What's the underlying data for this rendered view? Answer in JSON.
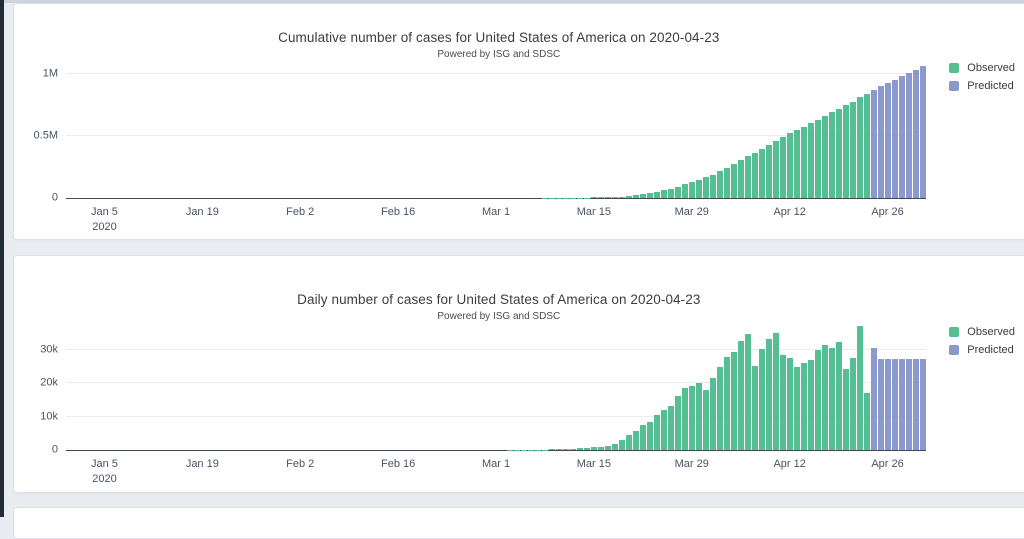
{
  "page": {
    "background": "#e9edf1",
    "left_strip_color": "#222a35",
    "top_strip_color": "#cbd3df"
  },
  "colors": {
    "observed": "#56be93",
    "predicted": "#8c99cd",
    "grid_line": "#ebebf0",
    "axis_line": "#424852",
    "tick_text": "#4a5365"
  },
  "legend": {
    "observed_label": "Observed",
    "predicted_label": "Predicted"
  },
  "chart_data": [
    {
      "type": "bar",
      "title": "Cumulative number of cases for United States of America on 2020-04-23",
      "subtitle": "Powered by ISG and SDSC",
      "unit": "thousands of cases",
      "x_start_date": "2019-12-31",
      "total_days": 123,
      "ylim_k": [
        0,
        1100
      ],
      "grid": true,
      "legend_position": "top-right",
      "y_ticks": [
        {
          "label": "1M",
          "value_k": 1000
        },
        {
          "label": "0.5M",
          "value_k": 500
        },
        {
          "label": "0",
          "value_k": 0
        }
      ],
      "x_ticks": [
        {
          "label": "Jan 5",
          "sublabel": "2020",
          "day_index": 5
        },
        {
          "label": "Jan 19",
          "day_index": 19
        },
        {
          "label": "Feb 2",
          "day_index": 33
        },
        {
          "label": "Feb 16",
          "day_index": 47
        },
        {
          "label": "Mar 1",
          "day_index": 61
        },
        {
          "label": "Mar 15",
          "day_index": 75
        },
        {
          "label": "Mar 29",
          "day_index": 89
        },
        {
          "label": "Apr 12",
          "day_index": 103
        },
        {
          "label": "Apr 26",
          "day_index": 117
        }
      ],
      "series": [
        {
          "name": "Observed",
          "color_key": "observed",
          "values_k": [
            0,
            0,
            0,
            0,
            0,
            0,
            0,
            0,
            0,
            0,
            0,
            0,
            0,
            0,
            0,
            0,
            0,
            0,
            0,
            0,
            0,
            0,
            0,
            0,
            0,
            0,
            0,
            0,
            0,
            0,
            0,
            0,
            0,
            0,
            0,
            0,
            0,
            0,
            0,
            0,
            0,
            0,
            0,
            0,
            0,
            0,
            0,
            0,
            0,
            0,
            0,
            0,
            0,
            0,
            0,
            0,
            0,
            0,
            0,
            0,
            0,
            0.1,
            0.12,
            0.15,
            0.2,
            0.27,
            0.37,
            0.5,
            0.65,
            0.9,
            1.2,
            1.6,
            2.1,
            2.7,
            3.4,
            4.2,
            5.2,
            6.6,
            8.6,
            11.7,
            16.3,
            22,
            29.4,
            38,
            49,
            61,
            74,
            91,
            110,
            129,
            149,
            168,
            190,
            215,
            243,
            272,
            305,
            340,
            366,
            396,
            427,
            460,
            495,
            524,
            552,
            577,
            603,
            630,
            660,
            692,
            724,
            749,
            777,
            814,
            845
          ]
        },
        {
          "name": "Predicted",
          "color_key": "predicted",
          "values_k": [
            875,
            902,
            929,
            957,
            984,
            1011,
            1038,
            1066
          ]
        }
      ]
    },
    {
      "type": "bar",
      "title": "Daily number of cases for United States of America on 2020-04-23",
      "subtitle": "Powered by ISG and SDSC",
      "unit": "thousands of cases",
      "x_start_date": "2019-12-31",
      "total_days": 123,
      "ylim_k": [
        0,
        37.2
      ],
      "grid": true,
      "legend_position": "top-right",
      "y_ticks": [
        {
          "label": "30k",
          "value_k": 30
        },
        {
          "label": "20k",
          "value_k": 20
        },
        {
          "label": "10k",
          "value_k": 10
        },
        {
          "label": "0",
          "value_k": 0
        }
      ],
      "x_ticks": [
        {
          "label": "Jan 5",
          "sublabel": "2020",
          "day_index": 5
        },
        {
          "label": "Jan 19",
          "day_index": 19
        },
        {
          "label": "Feb 2",
          "day_index": 33
        },
        {
          "label": "Feb 16",
          "day_index": 47
        },
        {
          "label": "Mar 1",
          "day_index": 61
        },
        {
          "label": "Mar 15",
          "day_index": 75
        },
        {
          "label": "Mar 29",
          "day_index": 89
        },
        {
          "label": "Apr 12",
          "day_index": 103
        },
        {
          "label": "Apr 26",
          "day_index": 117
        }
      ],
      "series": [
        {
          "name": "Observed",
          "color_key": "observed",
          "values_k": [
            0,
            0,
            0,
            0,
            0,
            0,
            0,
            0,
            0,
            0,
            0,
            0,
            0,
            0,
            0,
            0,
            0,
            0,
            0,
            0,
            0,
            0,
            0,
            0,
            0,
            0,
            0,
            0,
            0,
            0,
            0,
            0,
            0,
            0,
            0,
            0,
            0,
            0,
            0,
            0,
            0,
            0,
            0,
            0,
            0,
            0,
            0,
            0,
            0,
            0,
            0,
            0,
            0,
            0,
            0,
            0,
            0,
            0,
            0,
            0,
            0,
            0.02,
            0.02,
            0.03,
            0.05,
            0.07,
            0.1,
            0.12,
            0.15,
            0.25,
            0.3,
            0.35,
            0.45,
            0.55,
            0.65,
            0.8,
            1,
            1.3,
            1.9,
            3,
            4.6,
            5.6,
            7.4,
            8.5,
            10.5,
            12,
            13.2,
            16.2,
            18.6,
            19.1,
            20.1,
            18.1,
            21.6,
            24.8,
            27.9,
            29.4,
            32.8,
            34.8,
            25.3,
            30.4,
            33.3,
            35.2,
            28.6,
            27.6,
            24.8,
            26.2,
            27.1,
            30,
            31.4,
            30.5,
            32.4,
            24.3,
            27.6,
            37.1,
            17.1
          ]
        },
        {
          "name": "Predicted",
          "color_key": "predicted",
          "values_k": [
            30.5,
            27.3,
            27.3,
            27.3,
            27.3,
            27.3,
            27.3,
            27.3
          ]
        }
      ]
    }
  ]
}
